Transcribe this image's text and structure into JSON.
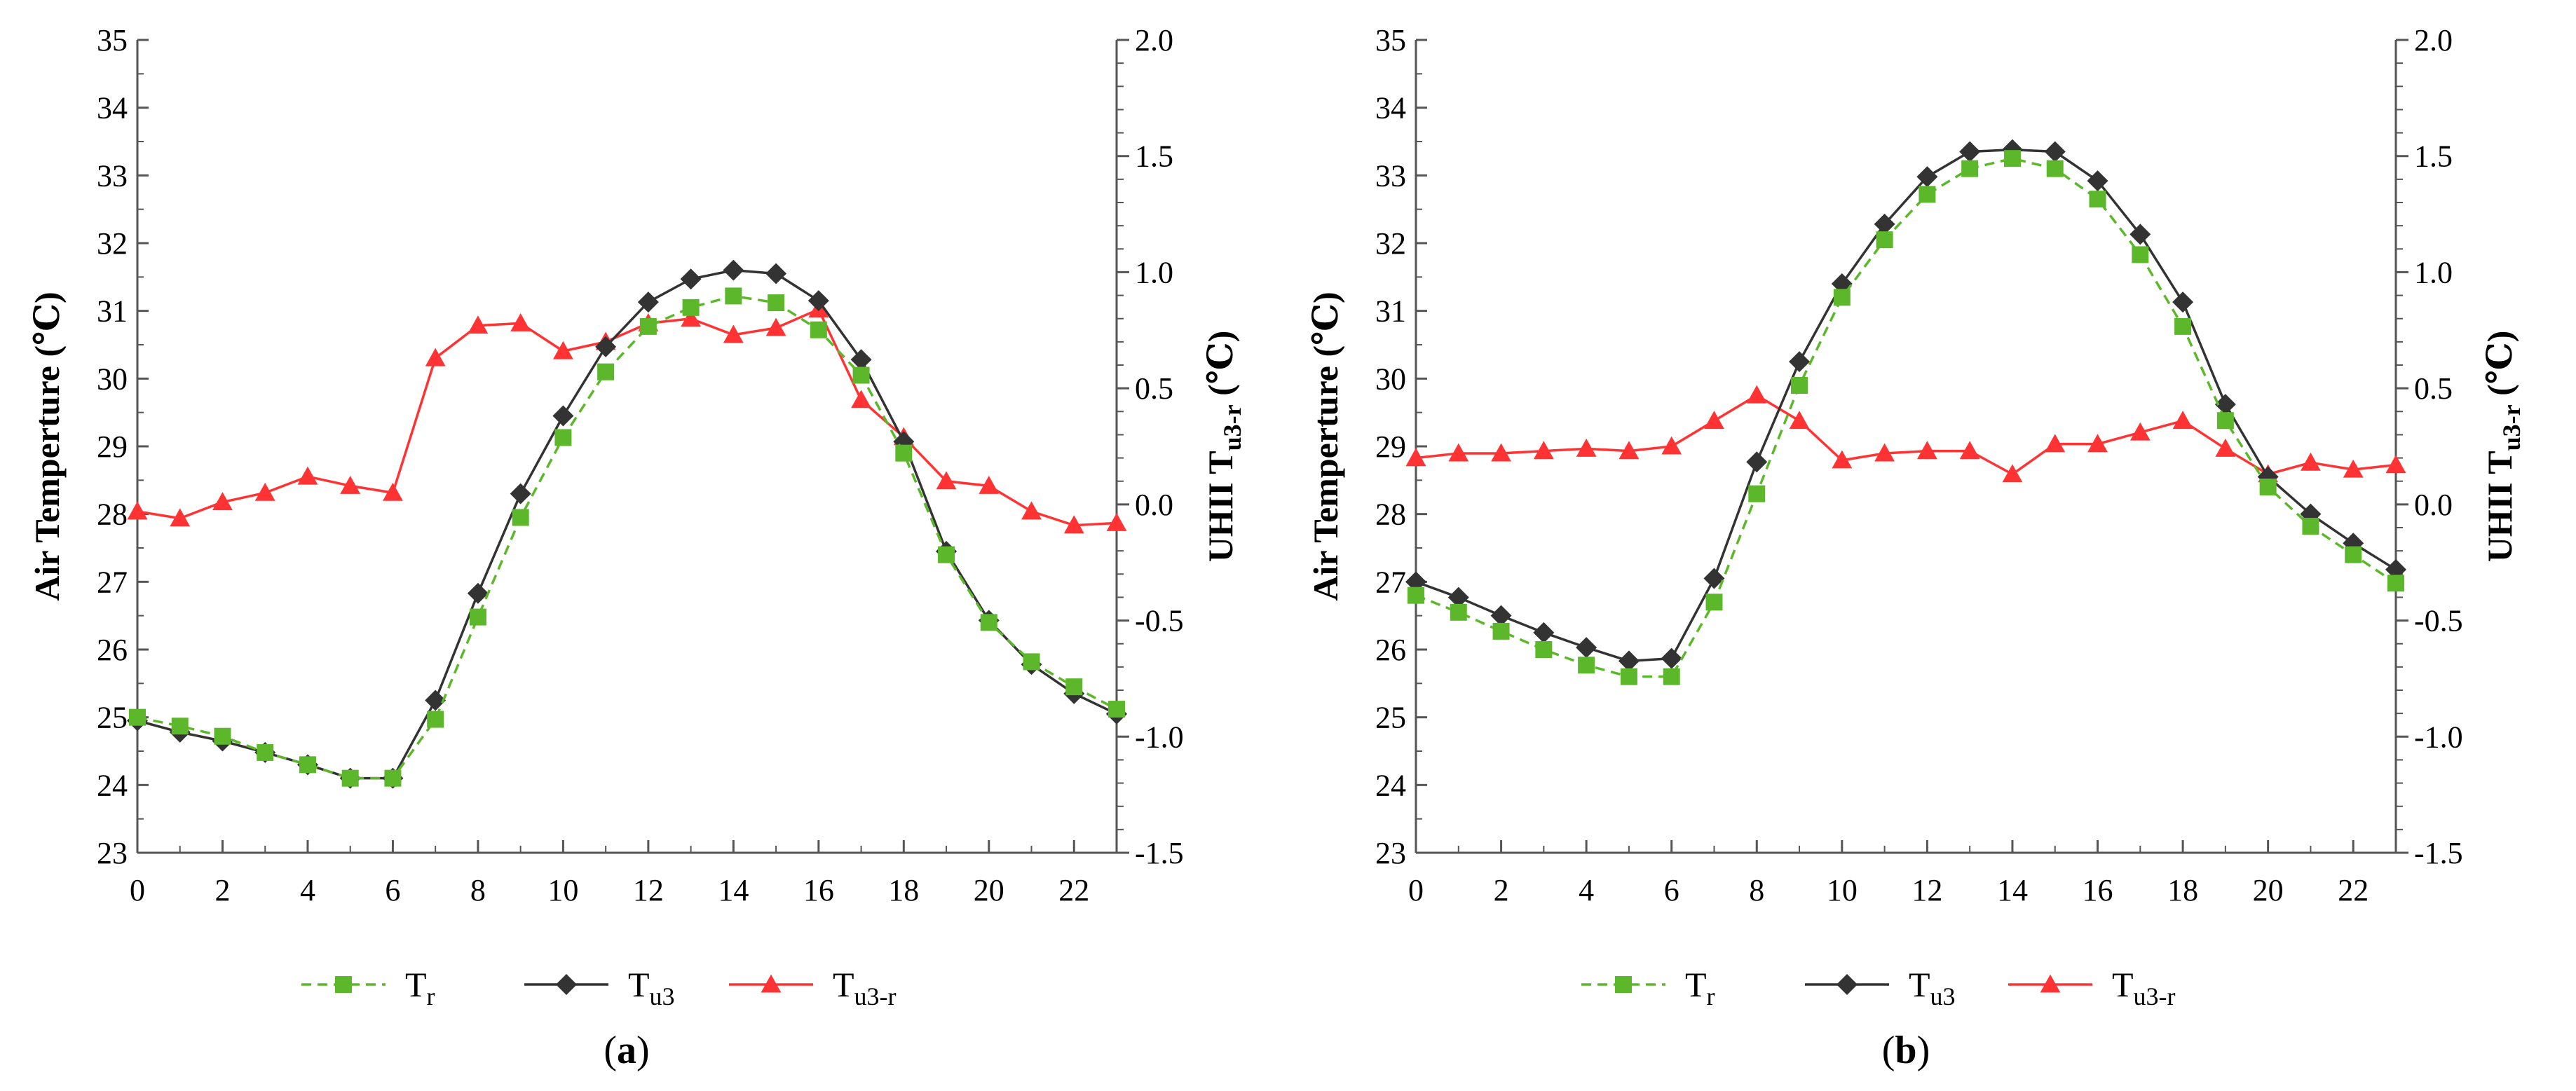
{
  "chart_data": [
    {
      "type": "line",
      "panel_label": "(a)",
      "x": [
        0,
        1,
        2,
        3,
        4,
        5,
        6,
        7,
        8,
        9,
        10,
        11,
        12,
        13,
        14,
        15,
        16,
        17,
        18,
        19,
        20,
        21,
        22,
        23
      ],
      "x_ticks": [
        0,
        2,
        4,
        6,
        8,
        10,
        12,
        14,
        16,
        18,
        20,
        22
      ],
      "xlim": [
        0,
        23
      ],
      "ylabel": "Air Temperture (℃)",
      "y2label_main": "UHII T",
      "y2label_sub": "u3-r",
      "y2label_unit": " (℃)",
      "ylim": [
        23,
        35
      ],
      "y_ticks": [
        "23",
        "24",
        "25",
        "26",
        "27",
        "28",
        "29",
        "30",
        "31",
        "32",
        "33",
        "34",
        "35"
      ],
      "y2lim": [
        -1.5,
        2.0
      ],
      "y2_ticks": [
        "-1.5",
        "-1.0",
        "-0.5",
        "0.0",
        "0.5",
        "1.0",
        "1.5",
        "2.0"
      ],
      "series": [
        {
          "name": "Tr",
          "label_main": "T",
          "label_sub": "r",
          "axis": "left",
          "color": "#5cb82a",
          "marker": "square",
          "dash": true,
          "values": [
            25.0,
            24.87,
            24.72,
            24.48,
            24.3,
            24.1,
            24.1,
            24.97,
            26.48,
            27.95,
            29.13,
            30.1,
            30.77,
            31.05,
            31.22,
            31.12,
            30.72,
            30.05,
            28.9,
            27.4,
            26.4,
            25.82,
            25.45,
            25.12
          ]
        },
        {
          "name": "Tu3",
          "label_main": "T",
          "label_sub": "u3",
          "axis": "left",
          "color": "#333333",
          "marker": "diamond",
          "dash": false,
          "values": [
            24.95,
            24.78,
            24.65,
            24.48,
            24.3,
            24.1,
            24.1,
            25.25,
            26.83,
            28.3,
            29.45,
            30.47,
            31.13,
            31.47,
            31.6,
            31.55,
            31.15,
            30.28,
            29.07,
            27.45,
            26.43,
            25.78,
            25.35,
            25.05
          ]
        },
        {
          "name": "Tu3-r",
          "label_main": "T",
          "label_sub": "u3-r",
          "axis": "right",
          "color": "#ff3333",
          "marker": "triangle",
          "dash": false,
          "values": [
            -0.03,
            -0.06,
            0.01,
            0.05,
            0.12,
            0.08,
            0.05,
            0.63,
            0.77,
            0.78,
            0.66,
            0.7,
            0.78,
            0.8,
            0.73,
            0.76,
            0.84,
            0.45,
            0.29,
            0.1,
            0.08,
            -0.03,
            -0.09,
            -0.08
          ]
        }
      ]
    },
    {
      "type": "line",
      "panel_label": "(b)",
      "x": [
        0,
        1,
        2,
        3,
        4,
        5,
        6,
        7,
        8,
        9,
        10,
        11,
        12,
        13,
        14,
        15,
        16,
        17,
        18,
        19,
        20,
        21,
        22,
        23
      ],
      "x_ticks": [
        0,
        2,
        4,
        6,
        8,
        10,
        12,
        14,
        16,
        18,
        20,
        22
      ],
      "xlim": [
        0,
        23
      ],
      "ylabel": "Air Temperture (℃)",
      "y2label_main": "UHII T",
      "y2label_sub": "u3-r",
      "y2label_unit": " (℃)",
      "ylim": [
        23,
        35
      ],
      "y_ticks": [
        "23",
        "24",
        "25",
        "26",
        "27",
        "28",
        "29",
        "30",
        "31",
        "32",
        "33",
        "34",
        "35"
      ],
      "y2lim": [
        -1.5,
        2.0
      ],
      "y2_ticks": [
        "-1.5",
        "-1.0",
        "-0.5",
        "0.0",
        "0.5",
        "1.0",
        "1.5",
        "2.0"
      ],
      "series": [
        {
          "name": "Tr",
          "label_main": "T",
          "label_sub": "r",
          "axis": "left",
          "color": "#5cb82a",
          "marker": "square",
          "dash": true,
          "values": [
            26.8,
            26.55,
            26.27,
            26.0,
            25.77,
            25.6,
            25.6,
            26.7,
            28.3,
            29.9,
            31.2,
            32.05,
            32.72,
            33.1,
            33.25,
            33.1,
            32.65,
            31.83,
            30.77,
            29.38,
            28.4,
            27.82,
            27.4,
            26.98
          ]
        },
        {
          "name": "Tu3",
          "label_main": "T",
          "label_sub": "u3",
          "axis": "left",
          "color": "#333333",
          "marker": "diamond",
          "dash": false,
          "values": [
            27.0,
            26.77,
            26.5,
            26.25,
            26.03,
            25.83,
            25.87,
            27.05,
            28.77,
            30.25,
            31.4,
            32.28,
            32.98,
            33.35,
            33.38,
            33.35,
            32.92,
            32.13,
            31.13,
            29.62,
            28.55,
            28.0,
            27.57,
            27.18
          ]
        },
        {
          "name": "Tu3-r",
          "label_main": "T",
          "label_sub": "u3-r",
          "axis": "right",
          "color": "#ff3333",
          "marker": "triangle",
          "dash": false,
          "values": [
            0.2,
            0.22,
            0.22,
            0.23,
            0.24,
            0.23,
            0.25,
            0.36,
            0.47,
            0.36,
            0.19,
            0.22,
            0.23,
            0.23,
            0.13,
            0.26,
            0.26,
            0.31,
            0.36,
            0.24,
            0.13,
            0.18,
            0.15,
            0.17
          ]
        }
      ]
    }
  ]
}
